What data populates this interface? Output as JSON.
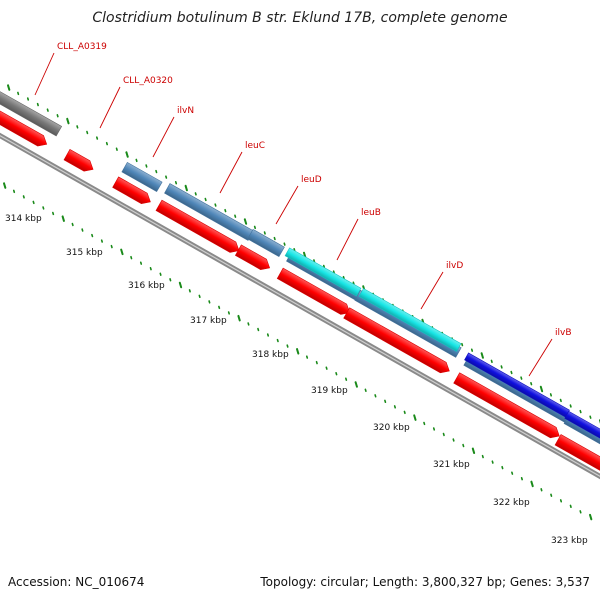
{
  "title": "Clostridium botulinum B str. Eklund 17B, complete genome",
  "footer": {
    "accession": "Accession: NC_010674",
    "summary": "Topology: circular; Length: 3,800,327 bp; Genes: 3,537"
  },
  "colors": {
    "cds_forward": "#ff0000",
    "gene_steelblue": "#4f86b8",
    "gene_gray": "#777777",
    "gene_cyan": "#18e6e6",
    "gene_blue": "#1010e0",
    "tick_green": "#1a8a1a",
    "backbone": "#8a8a8a",
    "label_red": "#cc0000"
  },
  "genes": [
    {
      "name": "CLL_A0319"
    },
    {
      "name": "CLL_A0320"
    },
    {
      "name": "ilvN"
    },
    {
      "name": "leuC"
    },
    {
      "name": "leuD"
    },
    {
      "name": "leuB"
    },
    {
      "name": "ilvD"
    },
    {
      "name": "ilvB"
    }
  ],
  "ticks": [
    {
      "label": "314 kbp"
    },
    {
      "label": "315 kbp"
    },
    {
      "label": "316 kbp"
    },
    {
      "label": "317 kbp"
    },
    {
      "label": "318 kbp"
    },
    {
      "label": "319 kbp"
    },
    {
      "label": "320 kbp"
    },
    {
      "label": "321 kbp"
    },
    {
      "label": "322 kbp"
    },
    {
      "label": "323 kbp"
    }
  ]
}
